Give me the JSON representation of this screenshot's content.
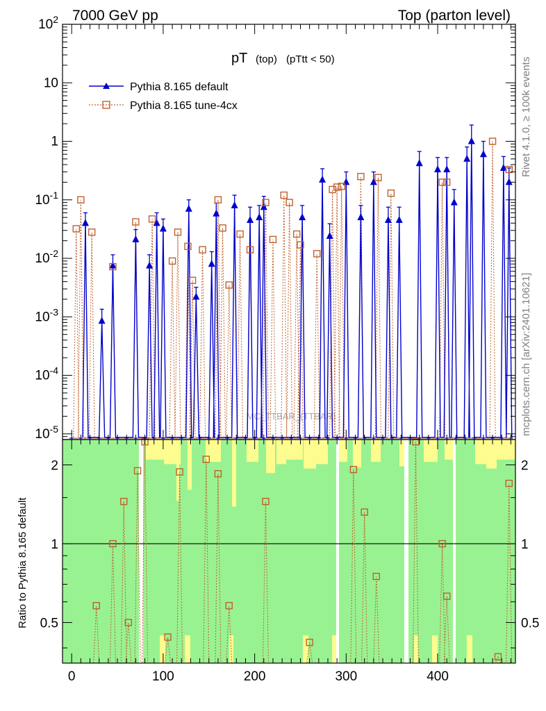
{
  "header": {
    "left": "7000 GeV pp",
    "right": "Top (parton level)"
  },
  "plot_title": {
    "main": "pT",
    "sub": "(top)",
    "cut": "(pTtt < 50)"
  },
  "side_text": {
    "top": "Rivet 4.1.0, ≥ 100k events",
    "bottom": "mcplots.cern.ch [arXiv:2401.10621]"
  },
  "watermark": "MC_TTBAR_(TTBAR)",
  "colors": {
    "default": "#0000cc",
    "tune": "#c0602a",
    "band_green": "#99f291",
    "band_yellow": "#fdfc8f"
  },
  "chart_data": [
    {
      "type": "line",
      "title": "pT (top) (pTtt < 50)",
      "xlabel": "",
      "ylabel": "",
      "yscale": "log",
      "xlim": [
        -10,
        485
      ],
      "ylim": [
        8e-06,
        100
      ],
      "x_ticks": [
        0,
        100,
        200,
        300,
        400
      ],
      "y_ticks": [
        "10^-5",
        "10^-4",
        "10^-3",
        "10^-2",
        "10^-1",
        "1",
        "10",
        "10^2"
      ],
      "legend": {
        "position": "top-left",
        "entries": [
          "Pythia 8.165 default",
          "Pythia 8.165 tune-4cx"
        ]
      },
      "series": [
        {
          "name": "Pythia 8.165 default",
          "marker": "filled-triangle",
          "x": [
            15,
            33,
            45,
            70,
            85,
            93,
            100,
            128,
            136,
            153,
            158,
            178,
            195,
            205,
            210,
            252,
            274,
            282,
            300,
            316,
            330,
            346,
            358,
            380,
            400,
            410,
            418,
            432,
            437,
            450,
            472,
            478
          ],
          "y": [
            0.04,
            0.00085,
            0.0075,
            0.021,
            0.0075,
            0.04,
            0.032,
            0.07,
            0.0022,
            0.008,
            0.058,
            0.08,
            0.045,
            0.05,
            0.075,
            0.05,
            0.22,
            0.024,
            0.2,
            0.05,
            0.2,
            0.045,
            0.045,
            0.42,
            0.33,
            0.33,
            0.09,
            0.5,
            1.0,
            0.6,
            0.35,
            0.2
          ],
          "err": [
            0.02,
            0.0005,
            0.004,
            0.01,
            0.004,
            0.02,
            0.015,
            0.03,
            0.001,
            0.005,
            0.03,
            0.04,
            0.03,
            0.03,
            0.04,
            0.03,
            0.12,
            0.015,
            0.1,
            0.03,
            0.1,
            0.03,
            0.03,
            0.25,
            0.2,
            0.2,
            0.06,
            0.3,
            0.9,
            0.4,
            0.2,
            0.15
          ]
        },
        {
          "name": "Pythia 8.165 tune-4cx",
          "marker": "open-square",
          "x": [
            5,
            10,
            22,
            45,
            70,
            88,
            110,
            116,
            127,
            132,
            143,
            160,
            165,
            172,
            184,
            195,
            212,
            220,
            232,
            238,
            246,
            250,
            268,
            285,
            290,
            295,
            316,
            335,
            349,
            405,
            410,
            460,
            478
          ],
          "y": [
            0.032,
            0.1,
            0.028,
            0.0072,
            0.042,
            0.047,
            0.009,
            0.028,
            0.016,
            0.0042,
            0.014,
            0.1,
            0.033,
            0.0035,
            0.026,
            0.014,
            0.09,
            0.021,
            0.12,
            0.09,
            0.026,
            0.017,
            0.012,
            0.15,
            0.165,
            0.17,
            0.25,
            0.24,
            0.13,
            0.2,
            0.2,
            1.0,
            0.33
          ]
        }
      ],
      "zero_markers_note": "both series drop to the bottom of the axis between the listed points"
    },
    {
      "type": "line",
      "title": "",
      "ylabel": "Ratio to Pythia 8.165 default",
      "yscale": "log",
      "xlim": [
        -10,
        485
      ],
      "ylim": [
        0.35,
        2.5
      ],
      "y_ticks": [
        0.5,
        1,
        2
      ],
      "reference_line": 1,
      "series": [
        {
          "name": "Pythia 8.165 tune-4cx / Pythia 8.165 default",
          "x": [
            27,
            45,
            57,
            62,
            72,
            80,
            105,
            118,
            147,
            160,
            172,
            212,
            260,
            308,
            320,
            333,
            376,
            405,
            410,
            466,
            478
          ],
          "y": [
            0.58,
            1.0,
            1.45,
            0.5,
            1.9,
            2.45,
            0.44,
            1.88,
            2.1,
            1.85,
            0.58,
            1.45,
            0.42,
            1.92,
            1.32,
            0.75,
            2.45,
            1.0,
            0.63,
            0.37,
            1.7
          ]
        }
      ],
      "uncertainty_bands": [
        "1 sigma (green)",
        "2 sigma (yellow)"
      ]
    }
  ]
}
